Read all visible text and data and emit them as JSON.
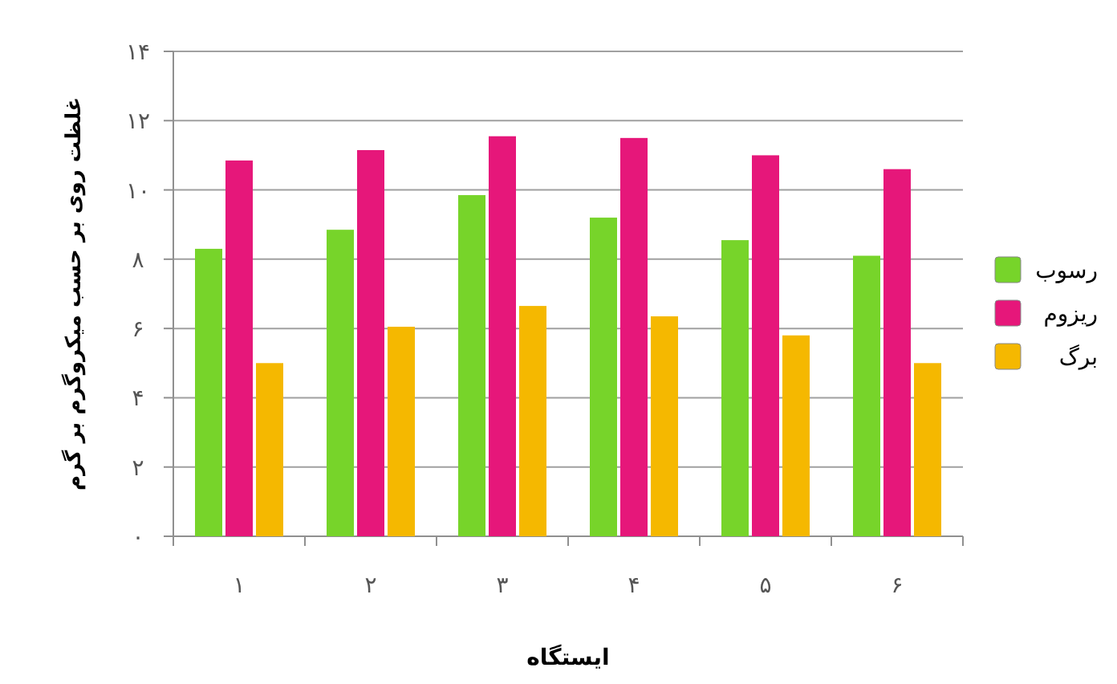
{
  "chart_data": {
    "type": "bar",
    "xlabel": "ایستگاه",
    "ylabel": "غلظت روی بر حسب میکروگرم بر گرم",
    "categories": [
      "۱",
      "۲",
      "۳",
      "۴",
      "۵",
      "۶"
    ],
    "series": [
      {
        "name": "رسوب",
        "color": "#77d42a",
        "values": [
          8.3,
          8.85,
          9.85,
          9.2,
          8.55,
          8.1
        ]
      },
      {
        "name": "ریزوم",
        "color": "#e6177a",
        "values": [
          10.85,
          11.15,
          11.55,
          11.5,
          11.0,
          10.6
        ]
      },
      {
        "name": "برگ",
        "color": "#f5b800",
        "values": [
          5.0,
          6.05,
          6.65,
          6.35,
          5.8,
          5.0
        ]
      }
    ],
    "ylim": [
      0,
      14
    ],
    "yticks": [
      {
        "value": 0,
        "label": "۰"
      },
      {
        "value": 2,
        "label": "۲"
      },
      {
        "value": 4,
        "label": "۴"
      },
      {
        "value": 6,
        "label": "۶"
      },
      {
        "value": 8,
        "label": "۸"
      },
      {
        "value": 10,
        "label": "۱۰"
      },
      {
        "value": 12,
        "label": "۱۲"
      },
      {
        "value": 14,
        "label": "۱۴"
      }
    ],
    "grid": "y",
    "legend": "right"
  }
}
